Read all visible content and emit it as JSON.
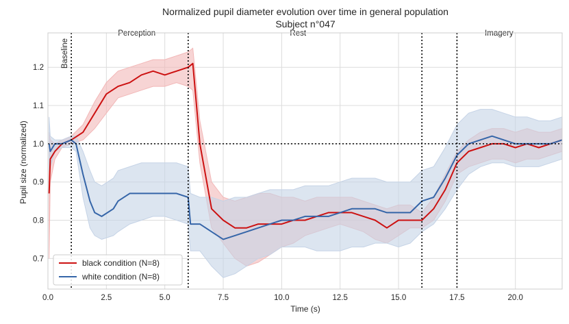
{
  "chart_data": {
    "type": "line",
    "title": "Normalized pupil diameter evolution over time in general population",
    "subtitle": "Subject n°047",
    "xlabel": "Time (s)",
    "ylabel": "Pupil size (normalized)",
    "xlim": [
      0,
      22
    ],
    "ylim": [
      0.62,
      1.29
    ],
    "xticks": [
      0,
      2.5,
      5,
      7.5,
      10,
      12.5,
      15,
      17.5,
      20
    ],
    "xtick_labels": [
      "0.0",
      "2.5",
      "5.0",
      "7.5",
      "10.0",
      "12.5",
      "15.0",
      "17.5",
      "20.0"
    ],
    "yticks": [
      0.7,
      0.8,
      0.9,
      1.0,
      1.1,
      1.2
    ],
    "ytick_labels": [
      "0.7",
      "0.8",
      "0.9",
      "1.0",
      "1.1",
      "1.2"
    ],
    "grid": true,
    "legend_position": "lower-left",
    "phase_lines_x": [
      1,
      6,
      16,
      17.5
    ],
    "reference_line_y": 1.0,
    "phases": [
      {
        "label": "Baseline",
        "x": 0.7,
        "rotated": true
      },
      {
        "label": "Perception",
        "x": 3.8,
        "rotated": false
      },
      {
        "label": "Rest",
        "x": 10.7,
        "rotated": false
      },
      {
        "label": "Imagery",
        "x": 19.3,
        "rotated": false
      }
    ],
    "series": [
      {
        "name": "black condition (N=8)",
        "color": "#cc1111",
        "band_color": "#f2b7b7",
        "x": [
          0.05,
          0.1,
          0.3,
          0.6,
          1.0,
          1.5,
          2.0,
          2.5,
          3.0,
          3.5,
          4.0,
          4.5,
          5.0,
          5.5,
          6.0,
          6.2,
          6.5,
          7.0,
          7.5,
          8.0,
          8.5,
          9.0,
          9.5,
          10.0,
          10.5,
          11.0,
          11.5,
          12.0,
          12.5,
          13.0,
          13.5,
          14.0,
          14.5,
          15.0,
          15.5,
          16.0,
          16.5,
          17.0,
          17.5,
          18.0,
          18.5,
          19.0,
          19.5,
          20.0,
          20.5,
          21.0,
          21.5,
          22.0
        ],
        "y": [
          0.87,
          0.96,
          0.98,
          1.0,
          1.01,
          1.03,
          1.08,
          1.13,
          1.15,
          1.16,
          1.18,
          1.19,
          1.18,
          1.19,
          1.2,
          1.21,
          1.0,
          0.83,
          0.8,
          0.78,
          0.78,
          0.79,
          0.79,
          0.79,
          0.8,
          0.8,
          0.81,
          0.82,
          0.82,
          0.82,
          0.81,
          0.8,
          0.78,
          0.8,
          0.8,
          0.8,
          0.83,
          0.88,
          0.95,
          0.98,
          0.99,
          1.0,
          1.0,
          0.99,
          1.0,
          0.99,
          1.0,
          1.01
        ],
        "lower": [
          0.7,
          0.9,
          0.96,
          0.99,
          1.0,
          1.01,
          1.04,
          1.08,
          1.12,
          1.13,
          1.14,
          1.15,
          1.15,
          1.16,
          1.15,
          1.14,
          0.95,
          0.78,
          0.74,
          0.7,
          0.68,
          0.69,
          0.71,
          0.73,
          0.74,
          0.76,
          0.77,
          0.78,
          0.79,
          0.78,
          0.77,
          0.75,
          0.74,
          0.76,
          0.78,
          0.78,
          0.8,
          0.85,
          0.92,
          0.94,
          0.95,
          0.96,
          0.96,
          0.95,
          0.96,
          0.96,
          0.97,
          0.98
        ],
        "upper": [
          1.03,
          1.01,
          1.0,
          1.01,
          1.02,
          1.05,
          1.11,
          1.16,
          1.19,
          1.2,
          1.21,
          1.22,
          1.22,
          1.23,
          1.24,
          1.25,
          1.06,
          0.9,
          0.86,
          0.85,
          0.86,
          0.87,
          0.87,
          0.86,
          0.86,
          0.85,
          0.86,
          0.86,
          0.86,
          0.86,
          0.85,
          0.84,
          0.83,
          0.84,
          0.84,
          0.82,
          0.86,
          0.92,
          0.98,
          1.01,
          1.03,
          1.04,
          1.04,
          1.03,
          1.04,
          1.03,
          1.03,
          1.04
        ]
      },
      {
        "name": "white condition (N=8)",
        "color": "#3565a8",
        "band_color": "#c5d3e6",
        "x": [
          0.05,
          0.1,
          0.3,
          0.6,
          1.0,
          1.2,
          1.5,
          1.8,
          2.0,
          2.3,
          2.8,
          3.0,
          3.5,
          4.0,
          4.5,
          5.0,
          5.5,
          6.0,
          6.1,
          6.5,
          7.0,
          7.5,
          8.0,
          8.5,
          9.0,
          9.5,
          10.0,
          10.5,
          11.0,
          11.5,
          12.0,
          12.5,
          13.0,
          13.5,
          14.0,
          14.5,
          15.0,
          15.5,
          16.0,
          16.5,
          17.0,
          17.5,
          18.0,
          18.5,
          19.0,
          19.5,
          20.0,
          20.5,
          21.0,
          21.5,
          22.0
        ],
        "y": [
          1.0,
          0.98,
          1.0,
          1.0,
          1.01,
          1.0,
          0.92,
          0.85,
          0.82,
          0.81,
          0.83,
          0.85,
          0.87,
          0.87,
          0.87,
          0.87,
          0.87,
          0.86,
          0.79,
          0.79,
          0.77,
          0.75,
          0.76,
          0.77,
          0.78,
          0.79,
          0.8,
          0.8,
          0.81,
          0.81,
          0.81,
          0.82,
          0.83,
          0.83,
          0.83,
          0.82,
          0.82,
          0.82,
          0.85,
          0.86,
          0.91,
          0.97,
          1.0,
          1.01,
          1.02,
          1.01,
          1.0,
          1.0,
          1.0,
          1.0,
          1.01
        ],
        "lower": [
          0.93,
          0.94,
          0.98,
          0.99,
          0.99,
          0.98,
          0.86,
          0.78,
          0.76,
          0.75,
          0.76,
          0.77,
          0.79,
          0.8,
          0.81,
          0.81,
          0.8,
          0.79,
          0.72,
          0.72,
          0.68,
          0.65,
          0.66,
          0.68,
          0.7,
          0.71,
          0.73,
          0.73,
          0.73,
          0.72,
          0.72,
          0.72,
          0.73,
          0.73,
          0.74,
          0.74,
          0.73,
          0.74,
          0.77,
          0.79,
          0.83,
          0.88,
          0.92,
          0.94,
          0.95,
          0.95,
          0.94,
          0.94,
          0.94,
          0.95,
          0.96
        ],
        "upper": [
          1.07,
          1.02,
          1.01,
          1.01,
          1.02,
          1.02,
          0.98,
          0.93,
          0.9,
          0.89,
          0.91,
          0.93,
          0.94,
          0.95,
          0.95,
          0.95,
          0.95,
          0.94,
          0.87,
          0.86,
          0.86,
          0.85,
          0.86,
          0.86,
          0.87,
          0.88,
          0.88,
          0.88,
          0.89,
          0.89,
          0.89,
          0.9,
          0.91,
          0.91,
          0.91,
          0.9,
          0.9,
          0.9,
          0.93,
          0.94,
          0.99,
          1.05,
          1.08,
          1.09,
          1.09,
          1.08,
          1.07,
          1.07,
          1.06,
          1.06,
          1.07
        ]
      }
    ]
  }
}
